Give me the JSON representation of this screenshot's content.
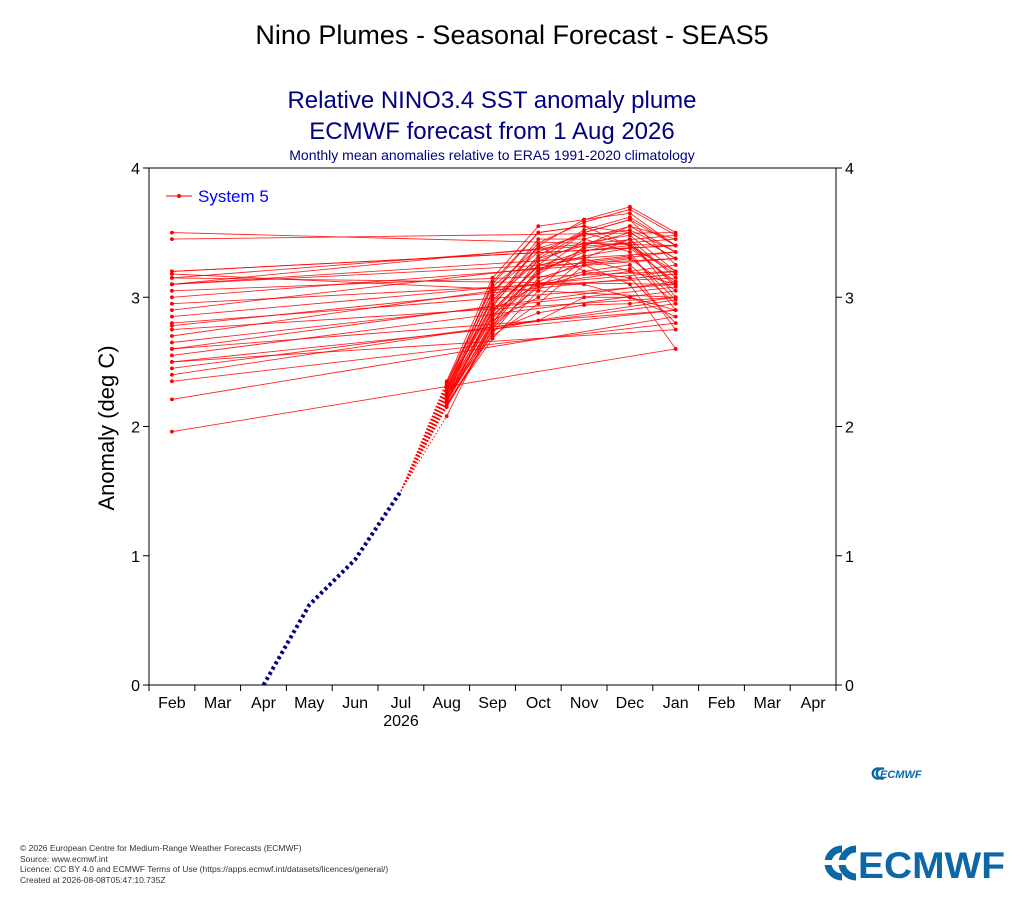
{
  "page": {
    "title": "Nino Plumes - Seasonal Forecast - SEAS5"
  },
  "chart_data": {
    "type": "line",
    "title": "Relative NINO3.4 SST anomaly plume",
    "title2": "ECMWF forecast from 1 Aug 2026",
    "subtitle": "Monthly mean anomalies relative to ERA5 1991-2020 climatology",
    "ylabel": "Anomaly (deg C)",
    "xlabel": "",
    "year_label": "2026",
    "ylim": [
      0,
      4
    ],
    "yticks": [
      0,
      1,
      2,
      3,
      4
    ],
    "categories": [
      "Feb",
      "Mar",
      "Apr",
      "May",
      "Jun",
      "Jul",
      "Aug",
      "Sep",
      "Oct",
      "Nov",
      "Dec",
      "Jan",
      "Feb",
      "Mar",
      "Apr"
    ],
    "legend": {
      "label": "System 5",
      "position": "top-left",
      "color": "#ff0000"
    },
    "observed": {
      "color": "#000080",
      "x": [
        "Apr",
        "May",
        "Jun",
        "Jul"
      ],
      "values": [
        0.0,
        0.62,
        0.97,
        1.5
      ]
    },
    "ensemble": {
      "color": "#ff0000",
      "start": {
        "x": "Jul",
        "value": 1.5
      },
      "x": [
        "Aug",
        "Sep",
        "Oct",
        "Nov",
        "Dec",
        "Jan",
        "Feb"
      ],
      "members": [
        [
          2.08,
          2.8,
          3.3,
          3.5,
          3.6,
          3.4,
          3.5
        ],
        [
          2.15,
          2.75,
          2.82,
          3.0,
          3.0,
          2.9,
          2.6
        ],
        [
          2.2,
          2.9,
          3.25,
          3.3,
          3.2,
          3.1,
          3.15
        ],
        [
          2.25,
          2.7,
          2.95,
          3.25,
          3.1,
          2.6,
          1.96
        ],
        [
          2.3,
          2.95,
          3.4,
          3.6,
          3.7,
          3.5,
          3.45
        ],
        [
          2.35,
          3.15,
          3.55,
          3.6,
          3.65,
          3.4,
          3.2
        ],
        [
          2.18,
          2.68,
          3.05,
          3.4,
          3.5,
          3.3,
          3.1
        ],
        [
          2.22,
          2.85,
          3.2,
          3.35,
          3.45,
          3.0,
          2.75
        ],
        [
          2.28,
          3.05,
          3.35,
          3.5,
          3.4,
          3.2,
          3.05
        ],
        [
          2.2,
          2.9,
          3.1,
          3.2,
          3.25,
          2.95,
          2.45
        ],
        [
          2.24,
          2.78,
          3.2,
          3.45,
          3.55,
          3.35,
          2.9
        ],
        [
          2.32,
          3.1,
          3.5,
          3.55,
          3.4,
          3.1,
          2.8
        ],
        [
          2.16,
          2.72,
          3.15,
          3.25,
          3.3,
          3.05,
          2.55
        ],
        [
          2.26,
          3.0,
          3.3,
          3.4,
          3.55,
          3.45,
          3.15
        ],
        [
          2.3,
          2.92,
          3.4,
          3.2,
          3.15,
          2.8,
          2.35
        ],
        [
          2.19,
          2.82,
          3.0,
          3.3,
          3.45,
          3.15,
          2.95
        ],
        [
          2.27,
          2.88,
          3.25,
          3.5,
          3.6,
          3.25,
          2.7
        ],
        [
          2.23,
          3.02,
          3.45,
          3.45,
          3.35,
          2.9,
          2.5
        ],
        [
          2.21,
          2.76,
          3.1,
          3.1,
          3.0,
          2.85,
          2.21
        ],
        [
          2.29,
          3.12,
          3.5,
          3.55,
          3.5,
          3.3,
          3.0
        ],
        [
          2.17,
          2.74,
          2.88,
          2.94,
          2.95,
          3.0,
          3.18
        ],
        [
          2.31,
          2.98,
          3.28,
          3.42,
          3.48,
          3.2,
          2.85
        ],
        [
          2.25,
          2.86,
          3.18,
          3.38,
          3.42,
          3.08,
          2.65
        ],
        [
          2.34,
          3.08,
          3.38,
          3.48,
          3.52,
          3.35,
          3.1
        ],
        [
          2.21,
          2.8,
          3.22,
          3.32,
          3.38,
          3.12,
          2.6
        ],
        [
          2.28,
          2.94,
          3.32,
          3.52,
          3.62,
          3.4,
          3.2
        ],
        [
          2.24,
          2.84,
          3.12,
          3.28,
          3.32,
          2.98,
          2.4
        ],
        [
          2.33,
          3.04,
          3.42,
          3.58,
          3.68,
          3.48,
          3.1
        ],
        [
          2.19,
          2.78,
          3.08,
          3.18,
          3.22,
          2.75,
          2.5
        ],
        [
          2.26,
          2.9,
          3.24,
          3.36,
          3.4,
          3.18,
          2.78
        ]
      ]
    }
  },
  "branding": {
    "small_logo": "ECMWF",
    "large_logo": "ECMWF",
    "logo_color": "#0b67a6"
  },
  "footer": {
    "line1": "© 2026 European Centre for Medium-Range Weather Forecasts (ECMWF)",
    "line2": "Source: www.ecmwf.int",
    "line3": "Licence: CC BY 4.0 and ECMWF Terms of Use (https://apps.ecmwf.int/datasets/licences/general/)",
    "line4": "Created at 2026-08-08T05:47:10.735Z"
  }
}
